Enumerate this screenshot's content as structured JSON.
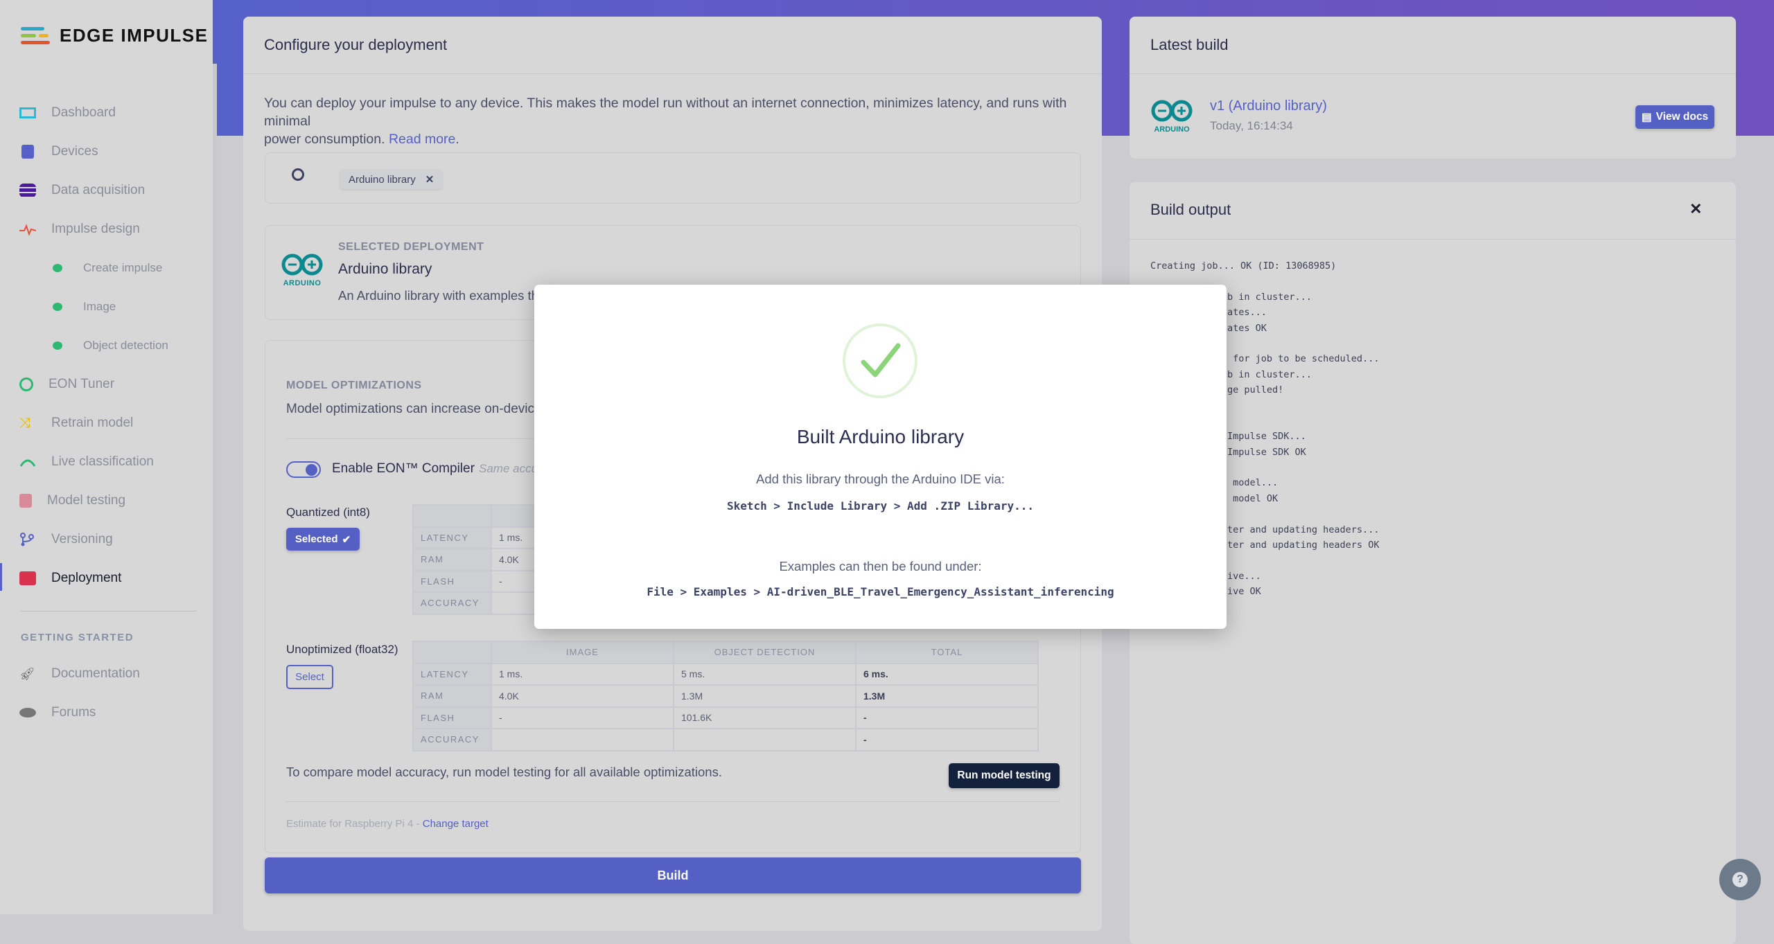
{
  "brand": {
    "name": "EDGE IMPULSE"
  },
  "sidebar": {
    "items": [
      {
        "label": "Dashboard",
        "icon": "monitor-icon"
      },
      {
        "label": "Devices",
        "icon": "chip-icon"
      },
      {
        "label": "Data acquisition",
        "icon": "database-icon"
      },
      {
        "label": "Impulse design",
        "icon": "pulse-icon"
      },
      {
        "label": "Create impulse",
        "icon": "status-dot"
      },
      {
        "label": "Image",
        "icon": "status-dot"
      },
      {
        "label": "Object detection",
        "icon": "status-dot"
      },
      {
        "label": "EON Tuner",
        "icon": "compass-icon"
      },
      {
        "label": "Retrain model",
        "icon": "shuffle-icon"
      },
      {
        "label": "Live classification",
        "icon": "live-icon"
      },
      {
        "label": "Model testing",
        "icon": "clipboard-check-icon"
      },
      {
        "label": "Versioning",
        "icon": "branch-icon"
      },
      {
        "label": "Deployment",
        "icon": "cube-icon",
        "active": true
      }
    ],
    "getting_started_heading": "GETTING STARTED",
    "getting_started": [
      {
        "label": "Documentation",
        "icon": "rocket-icon"
      },
      {
        "label": "Forums",
        "icon": "chat-icon"
      }
    ]
  },
  "configure": {
    "title": "Configure your deployment",
    "intro_line1": "You can deploy your impulse to any device. This makes the model run without an internet connection, minimizes latency, and runs with minimal",
    "intro_line2": "power consumption.",
    "read_more": "Read more",
    "period": ".",
    "search_chip": "Arduino library",
    "selected": {
      "heading": "SELECTED DEPLOYMENT",
      "name": "Arduino library",
      "description": "An Arduino library with examples that runs on most Arm-based Arduino development boards.",
      "logo_text": "ARDUINO"
    },
    "optimizations": {
      "heading": "MODEL OPTIMIZATIONS",
      "description": "Model optimizations can increase on-device performance but may reduce accuracy.",
      "eon_label": "Enable EON™ Compiler",
      "eon_hint": "Same accuracy, up to 50% less memory.",
      "eon_enabled": true,
      "columns": [
        "",
        "IMAGE",
        "OBJECT DETECTION",
        "TOTAL"
      ],
      "quantized": {
        "label": "Quantized (int8)",
        "button": "Selected",
        "rows": [
          {
            "metric": "LATENCY",
            "image": "1 ms."
          },
          {
            "metric": "RAM",
            "image": "4.0K"
          },
          {
            "metric": "FLASH",
            "image": "-"
          },
          {
            "metric": "ACCURACY",
            "image": ""
          }
        ]
      },
      "unoptimized": {
        "label": "Unoptimized (float32)",
        "button": "Select",
        "rows": [
          {
            "metric": "LATENCY",
            "image": "1 ms.",
            "object_detection": "5 ms.",
            "total": "6 ms."
          },
          {
            "metric": "RAM",
            "image": "4.0K",
            "object_detection": "1.3M",
            "total": "1.3M"
          },
          {
            "metric": "FLASH",
            "image": "-",
            "object_detection": "101.6K",
            "total": "-"
          },
          {
            "metric": "ACCURACY",
            "image": "",
            "object_detection": "",
            "total": "-"
          }
        ]
      },
      "compare_text": "To compare model accuracy, run model testing for all available optimizations.",
      "run_testing": "Run model testing",
      "estimate": "Estimate for Raspberry Pi 4 - ",
      "change_target": "Change target"
    },
    "build_button": "Build"
  },
  "latest_build": {
    "title": "Latest build",
    "version": "v1 (Arduino library)",
    "time": "Today, 16:14:34",
    "view_docs": "View docs",
    "logo_text": "ARDUINO"
  },
  "build_output": {
    "title": "Build output",
    "first_line": "Creating job... OK (ID: 13068985)",
    "visible_tails": [
      "",
      "b in cluster...",
      "ates...",
      "ates OK",
      "",
      " for job to be scheduled...",
      "b in cluster...",
      "ge pulled!",
      "",
      "",
      "Impulse SDK...",
      "Impulse SDK OK",
      "",
      " model...",
      " model OK",
      "",
      "ter and updating headers...",
      "ter and updating headers OK",
      "",
      "ive...",
      "ive OK"
    ]
  },
  "modal": {
    "title": "Built Arduino library",
    "add_text": "Add this library through the Arduino IDE via:",
    "add_path": "Sketch > Include Library > Add .ZIP Library...",
    "examples_text": "Examples can then be found under:",
    "examples_path": "File > Examples > AI-driven_BLE_Travel_Emergency_Assistant_inferencing"
  },
  "colors": {
    "accent": "#5560c4",
    "success": "#8bd47a",
    "dark_button": "#14213d"
  }
}
